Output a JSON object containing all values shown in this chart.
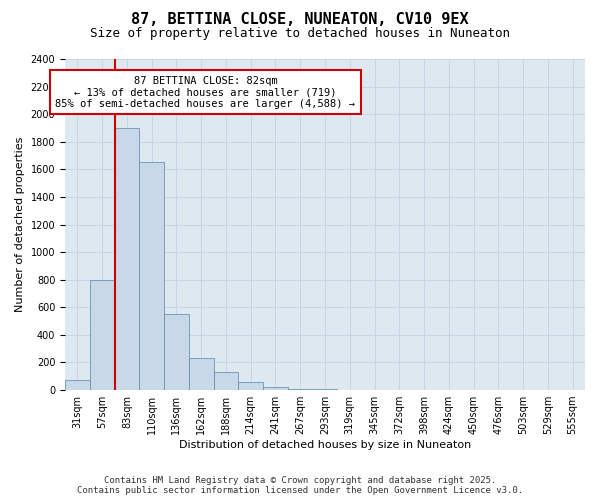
{
  "title": "87, BETTINA CLOSE, NUNEATON, CV10 9EX",
  "subtitle": "Size of property relative to detached houses in Nuneaton",
  "xlabel": "Distribution of detached houses by size in Nuneaton",
  "ylabel": "Number of detached properties",
  "bin_labels": [
    "31sqm",
    "57sqm",
    "83sqm",
    "110sqm",
    "136sqm",
    "162sqm",
    "188sqm",
    "214sqm",
    "241sqm",
    "267sqm",
    "293sqm",
    "319sqm",
    "345sqm",
    "372sqm",
    "398sqm",
    "424sqm",
    "450sqm",
    "476sqm",
    "503sqm",
    "529sqm",
    "555sqm"
  ],
  "bar_values": [
    75,
    800,
    1900,
    1650,
    550,
    230,
    130,
    60,
    25,
    10,
    5,
    2,
    1,
    0,
    0,
    0,
    0,
    0,
    0,
    0,
    0
  ],
  "bar_color": "#c8d8e8",
  "bar_edge_color": "#5588aa",
  "annotation_title": "87 BETTINA CLOSE: 82sqm",
  "annotation_line1": "← 13% of detached houses are smaller (719)",
  "annotation_line2": "85% of semi-detached houses are larger (4,588) →",
  "annotation_box_color": "#ffffff",
  "annotation_box_edge_color": "#cc0000",
  "vline_color": "#cc0000",
  "vline_x_index": 2,
  "ylim": [
    0,
    2400
  ],
  "yticks": [
    0,
    200,
    400,
    600,
    800,
    1000,
    1200,
    1400,
    1600,
    1800,
    2000,
    2200,
    2400
  ],
  "grid_color": "#c5d5e5",
  "background_color": "#dde8f0",
  "footer_line1": "Contains HM Land Registry data © Crown copyright and database right 2025.",
  "footer_line2": "Contains public sector information licensed under the Open Government Licence v3.0.",
  "title_fontsize": 11,
  "subtitle_fontsize": 9,
  "axis_label_fontsize": 8,
  "tick_fontsize": 7,
  "annotation_fontsize": 7.5,
  "footer_fontsize": 6.5
}
